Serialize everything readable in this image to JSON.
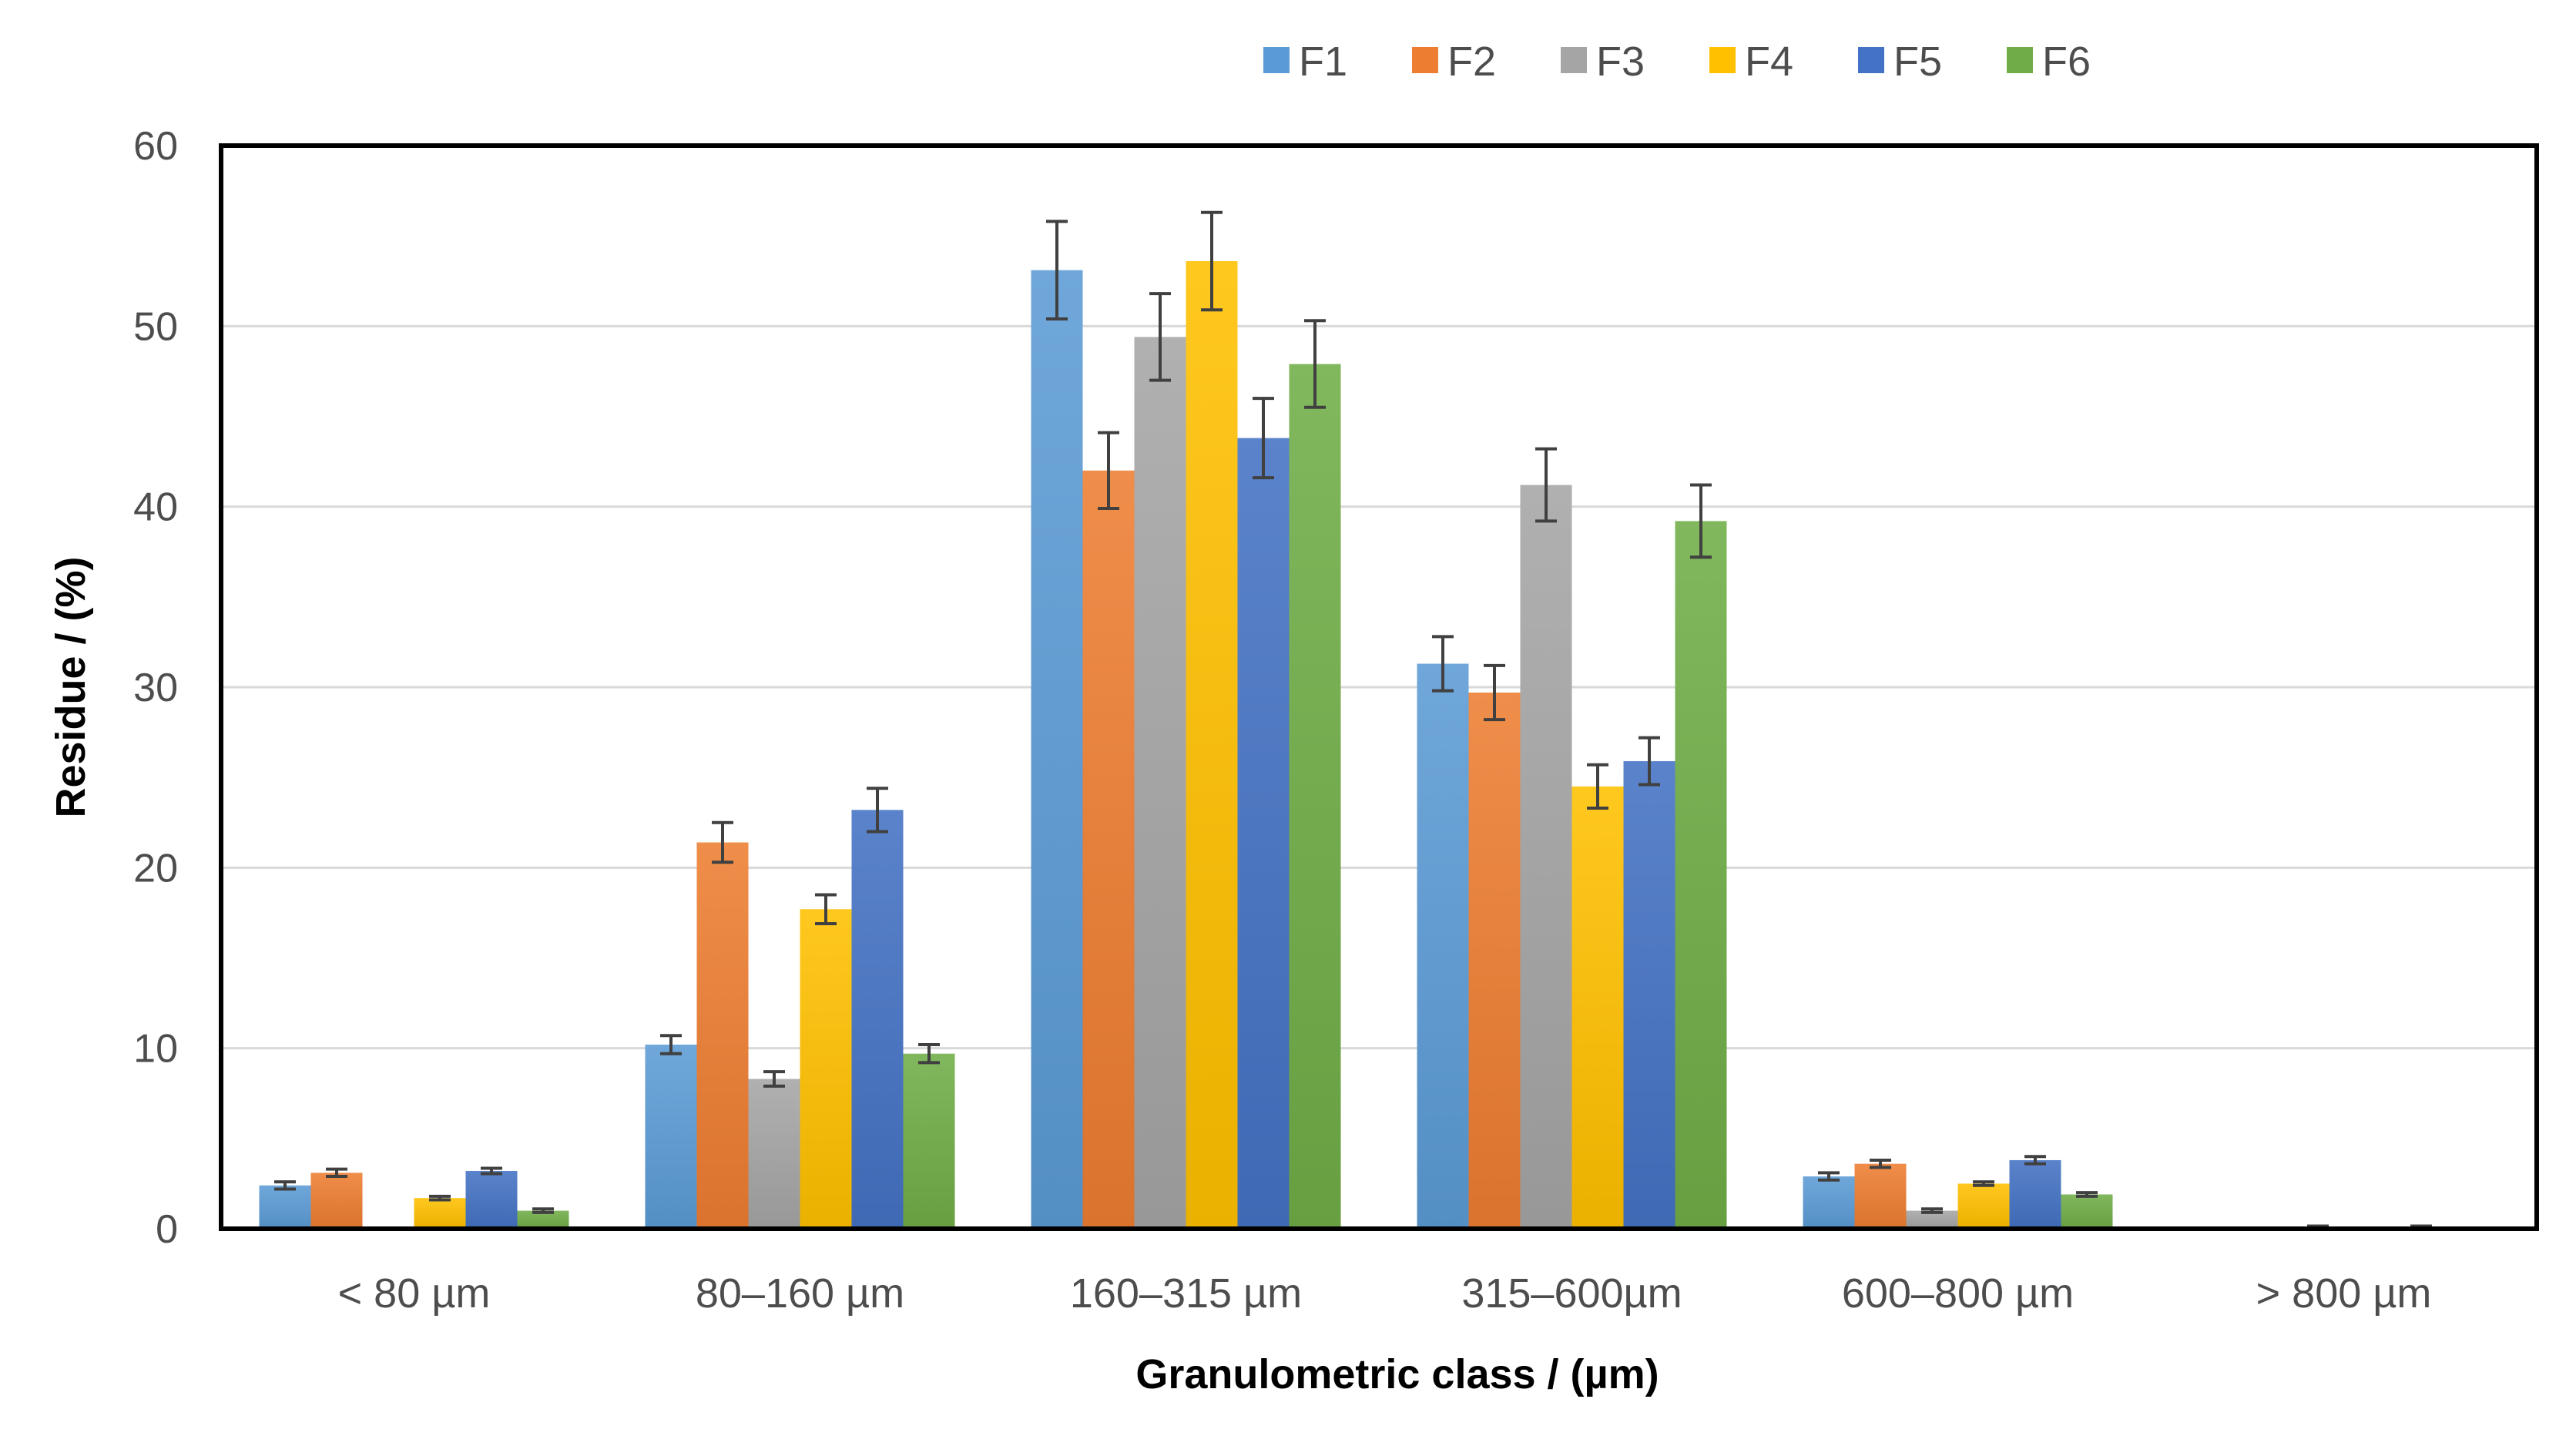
{
  "chart_data": {
    "type": "bar",
    "title": "",
    "xlabel": "Granulometric class / (µm)",
    "ylabel": "Residue / (%)",
    "ylim": [
      0,
      60
    ],
    "yticks": [
      0,
      10,
      20,
      30,
      40,
      50,
      60
    ],
    "grid": true,
    "legend_position": "top",
    "categories": [
      "< 80 µm",
      "80–160 µm",
      "160–315 µm",
      "315–600µm",
      "600–800 µm",
      "> 800 µm"
    ],
    "series": [
      {
        "name": "F1",
        "color": "#5B9BD5",
        "values": [
          2.4,
          10.2,
          53.1,
          31.3,
          2.9,
          0.0
        ],
        "errors": [
          0.2,
          0.5,
          2.7,
          1.5,
          0.2,
          0.0
        ]
      },
      {
        "name": "F2",
        "color": "#ED7D31",
        "values": [
          3.1,
          21.4,
          42.0,
          29.7,
          3.6,
          0.0
        ],
        "errors": [
          0.2,
          1.1,
          2.1,
          1.5,
          0.2,
          0.0
        ]
      },
      {
        "name": "F3",
        "color": "#A5A5A5",
        "values": [
          0.0,
          8.3,
          49.4,
          41.2,
          1.0,
          0.1
        ],
        "errors": [
          0.0,
          0.4,
          2.4,
          2.0,
          0.1,
          0.05
        ]
      },
      {
        "name": "F4",
        "color": "#FFC000",
        "values": [
          1.7,
          17.7,
          53.6,
          24.5,
          2.5,
          0.0
        ],
        "errors": [
          0.1,
          0.8,
          2.7,
          1.2,
          0.1,
          0.0
        ]
      },
      {
        "name": "F5",
        "color": "#4472C4",
        "values": [
          3.2,
          23.2,
          43.8,
          25.9,
          3.8,
          0.1
        ],
        "errors": [
          0.15,
          1.2,
          2.2,
          1.3,
          0.2,
          0.05
        ]
      },
      {
        "name": "F6",
        "color": "#70AD47",
        "values": [
          1.0,
          9.7,
          47.9,
          39.2,
          1.9,
          0.0
        ],
        "errors": [
          0.1,
          0.5,
          2.4,
          2.0,
          0.1,
          0.0
        ]
      }
    ]
  }
}
